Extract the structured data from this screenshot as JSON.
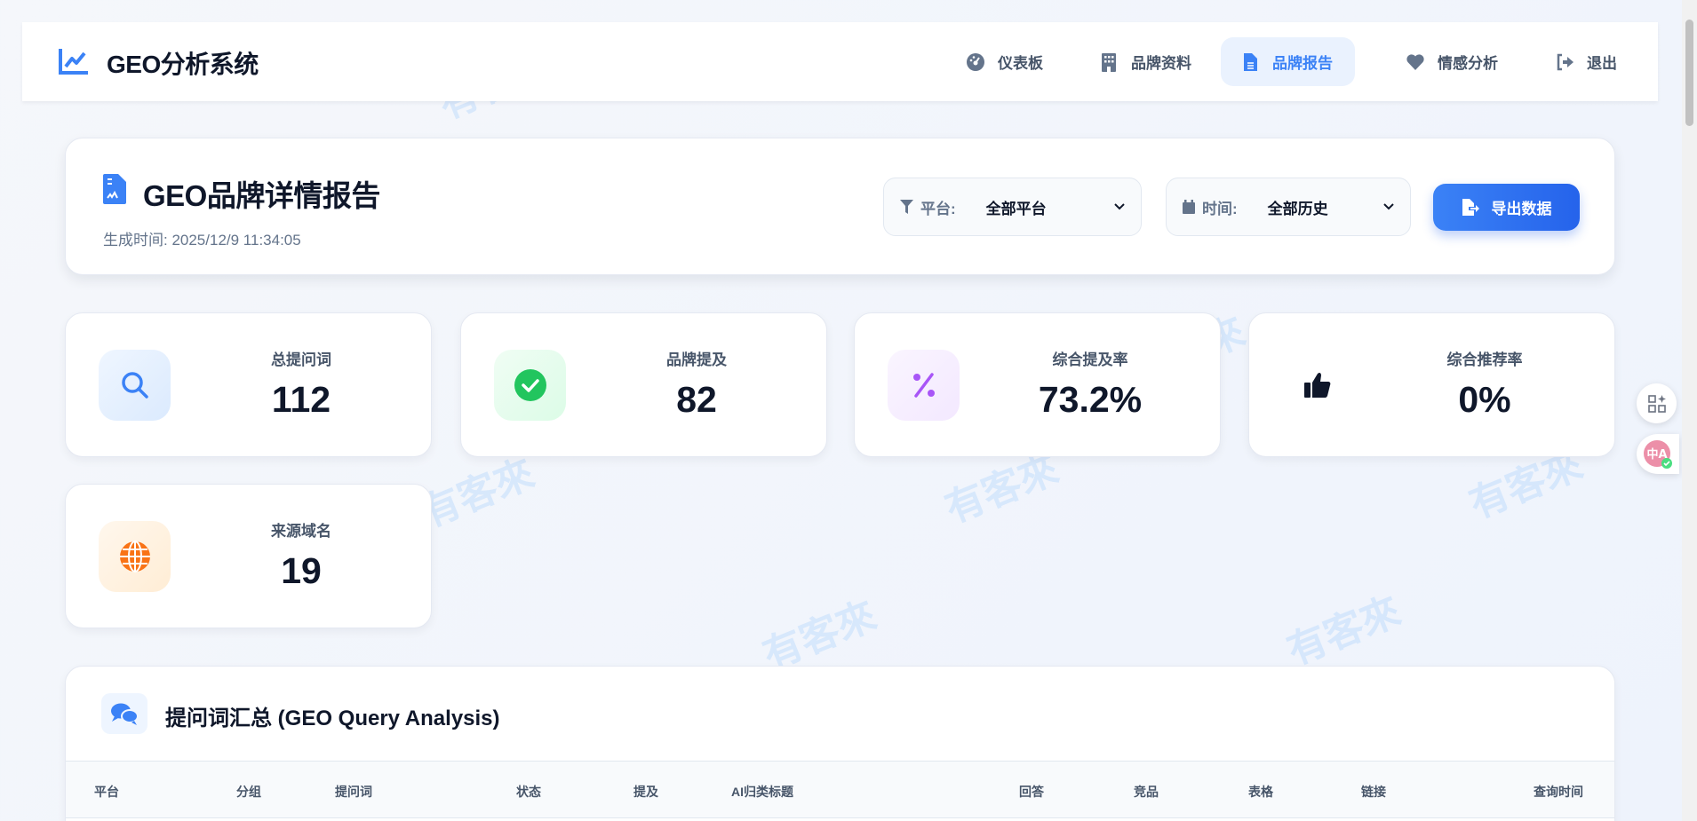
{
  "app": {
    "title": "GEO分析系统"
  },
  "nav": {
    "items": [
      {
        "label": "仪表板",
        "icon": "gauge-icon"
      },
      {
        "label": "品牌资料",
        "icon": "building-icon"
      },
      {
        "label": "品牌报告",
        "icon": "file-icon",
        "active": true
      },
      {
        "label": "情感分析",
        "icon": "heart-icon"
      },
      {
        "label": "退出",
        "icon": "logout-icon"
      }
    ]
  },
  "report": {
    "title": "GEO品牌详情报告",
    "generated": "生成时间: 2025/12/9 11:34:05",
    "platform_label": "平台:",
    "platform_value": "全部平台",
    "time_label": "时间:",
    "time_value": "全部历史",
    "export_label": "导出数据"
  },
  "stats": [
    {
      "label": "总提问词",
      "value": "112",
      "icon": "search-icon",
      "color": "#3b82f6"
    },
    {
      "label": "品牌提及",
      "value": "82",
      "icon": "check-circle-icon",
      "color": "#22c55e"
    },
    {
      "label": "综合提及率",
      "value": "73.2%",
      "icon": "percent-icon",
      "color": "#a855f7"
    },
    {
      "label": "综合推荐率",
      "value": "0%",
      "icon": "thumbs-up-icon",
      "color": "#0f172a"
    },
    {
      "label": "来源域名",
      "value": "19",
      "icon": "globe-icon",
      "color": "#f97316"
    }
  ],
  "query_table": {
    "title": "提问词汇总 (GEO Query Analysis)",
    "columns": [
      "平台",
      "分组",
      "提问词",
      "状态",
      "提及",
      "AI归类标题",
      "回答",
      "竞品",
      "表格",
      "链接",
      "查询时间"
    ]
  },
  "watermark": "有客來"
}
